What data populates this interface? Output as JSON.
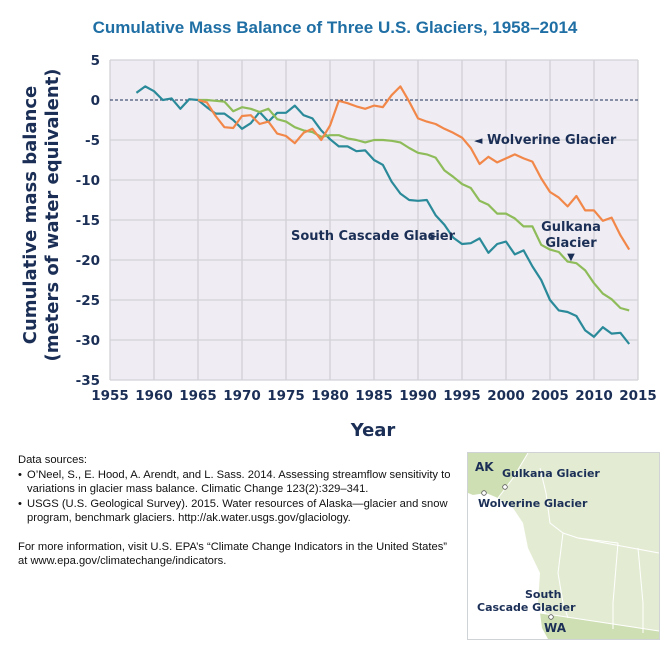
{
  "chart_data": {
    "type": "line",
    "title": "Cumulative Mass Balance of Three U.S. Glaciers, 1958–2014",
    "xlabel": "Year",
    "ylabel_lines": [
      "Cumulative mass balance",
      "(meters of water equivalent)"
    ],
    "xlim": [
      1955,
      2015
    ],
    "ylim": [
      -35,
      5
    ],
    "xticks": [
      1955,
      1960,
      1965,
      1970,
      1975,
      1980,
      1985,
      1990,
      1995,
      2000,
      2005,
      2010,
      2015
    ],
    "yticks": [
      5,
      0,
      -5,
      -10,
      -15,
      -20,
      -25,
      -30,
      -35
    ],
    "grid": true,
    "reference_line": 0,
    "series": [
      {
        "name": "South Cascade Glacier",
        "color": "#2b8a9a",
        "label": "South Cascade Glacier",
        "label_arrow": "➤",
        "x": [
          1958,
          1959,
          1960,
          1961,
          1962,
          1963,
          1964,
          1965,
          1966,
          1967,
          1968,
          1969,
          1970,
          1971,
          1972,
          1973,
          1974,
          1975,
          1976,
          1977,
          1978,
          1979,
          1980,
          1981,
          1982,
          1983,
          1984,
          1985,
          1986,
          1987,
          1988,
          1989,
          1990,
          1991,
          1992,
          1993,
          1994,
          1995,
          1996,
          1997,
          1998,
          1999,
          2000,
          2001,
          2002,
          2003,
          2004,
          2005,
          2006,
          2007,
          2008,
          2009,
          2010,
          2011,
          2012,
          2013,
          2014
        ],
        "values": [
          0.9,
          1.7,
          1.1,
          0.0,
          0.2,
          -1.1,
          0.1,
          0.0,
          -0.9,
          -1.7,
          -1.7,
          -2.5,
          -3.6,
          -2.9,
          -1.5,
          -2.7,
          -1.6,
          -1.6,
          -0.7,
          -1.9,
          -2.3,
          -3.8,
          -4.9,
          -5.8,
          -5.8,
          -6.4,
          -6.3,
          -7.5,
          -8.1,
          -10.2,
          -11.7,
          -12.5,
          -12.6,
          -12.5,
          -14.4,
          -15.6,
          -17.2,
          -18.0,
          -17.9,
          -17.3,
          -19.1,
          -18.0,
          -17.7,
          -19.3,
          -18.8,
          -20.8,
          -22.5,
          -25.0,
          -26.3,
          -26.5,
          -27.0,
          -28.8,
          -29.6,
          -28.4,
          -29.2,
          -29.1,
          -30.5
        ]
      },
      {
        "name": "Gulkana Glacier",
        "color": "#8fbc5a",
        "label_lines": [
          "Gulkana",
          "Glacier"
        ],
        "label_arrow": "▼",
        "x": [
          1965,
          1966,
          1967,
          1968,
          1969,
          1970,
          1971,
          1972,
          1973,
          1974,
          1975,
          1976,
          1977,
          1978,
          1979,
          1980,
          1981,
          1982,
          1983,
          1984,
          1985,
          1986,
          1987,
          1988,
          1989,
          1990,
          1991,
          1992,
          1993,
          1994,
          1995,
          1996,
          1997,
          1998,
          1999,
          2000,
          2001,
          2002,
          2003,
          2004,
          2005,
          2006,
          2007,
          2008,
          2009,
          2010,
          2011,
          2012,
          2013,
          2014
        ],
        "values": [
          0.0,
          0.0,
          -0.1,
          -0.2,
          -1.4,
          -0.9,
          -1.1,
          -1.5,
          -1.1,
          -2.4,
          -2.7,
          -3.4,
          -3.8,
          -4.0,
          -4.6,
          -4.4,
          -4.4,
          -4.8,
          -5.0,
          -5.3,
          -5.0,
          -5.0,
          -5.1,
          -5.3,
          -6.0,
          -6.6,
          -6.8,
          -7.2,
          -8.8,
          -9.6,
          -10.5,
          -11.0,
          -12.6,
          -13.1,
          -14.2,
          -14.2,
          -14.8,
          -15.8,
          -15.8,
          -18.1,
          -18.7,
          -19.0,
          -20.2,
          -20.4,
          -21.3,
          -22.9,
          -24.2,
          -24.9,
          -26.0,
          -26.3
        ]
      },
      {
        "name": "Wolverine Glacier",
        "color": "#f2874a",
        "label": "Wolverine Glacier",
        "label_arrow": "◄",
        "x": [
          1965,
          1966,
          1967,
          1968,
          1969,
          1970,
          1971,
          1972,
          1973,
          1974,
          1975,
          1976,
          1977,
          1978,
          1979,
          1980,
          1981,
          1982,
          1983,
          1984,
          1985,
          1986,
          1987,
          1988,
          1989,
          1990,
          1991,
          1992,
          1993,
          1994,
          1995,
          1996,
          1997,
          1998,
          1999,
          2000,
          2001,
          2002,
          2003,
          2004,
          2005,
          2006,
          2007,
          2008,
          2009,
          2010,
          2011,
          2012,
          2013,
          2014
        ],
        "values": [
          0.0,
          -0.3,
          -2.0,
          -3.4,
          -3.5,
          -2.0,
          -1.9,
          -3.0,
          -2.7,
          -4.2,
          -4.5,
          -5.4,
          -4.1,
          -3.6,
          -5.0,
          -3.2,
          -0.1,
          -0.4,
          -0.8,
          -1.1,
          -0.7,
          -0.9,
          0.6,
          1.7,
          -0.2,
          -2.3,
          -2.7,
          -3.0,
          -3.6,
          -4.1,
          -4.7,
          -6.0,
          -8.0,
          -7.1,
          -7.8,
          -7.3,
          -6.8,
          -7.3,
          -7.7,
          -9.8,
          -11.5,
          -12.2,
          -13.3,
          -12.0,
          -13.8,
          -13.8,
          -15.1,
          -14.7,
          -16.9,
          -18.7
        ]
      }
    ]
  },
  "sources": {
    "heading": "Data sources:",
    "items": [
      "O’Neel, S., E. Hood, A. Arendt, and L. Sass. 2014. Assessing streamflow sensitivity to variations in glacier mass balance. Climatic Change 123(2):329–341.",
      "USGS (U.S. Geological Survey). 2015. Water resources of Alaska—glacier and snow program, benchmark glaciers. http://ak.water.usgs.gov/glaciology."
    ],
    "more_info": "For more information, visit U.S. EPA’s “Climate Change Indicators in the United States” at www.epa.gov/climatechange/indicators."
  },
  "map": {
    "labels": {
      "ak": "AK",
      "gulkana": "Gulkana Glacier",
      "wolverine": "Wolverine Glacier",
      "south_cascade_1": "South",
      "south_cascade_2": "Cascade Glacier",
      "wa": "WA"
    },
    "colors": {
      "land": "#e3ecd3",
      "us_land": "#cfdfb4",
      "border": "#ffffff",
      "water": "#ffffff"
    }
  },
  "colors": {
    "plot_background": "#efedf3",
    "gridline": "#d2d1d6",
    "axis_text": "#1b2f56",
    "title": "#1f6fa5",
    "zero_line": "#1b2f56"
  }
}
